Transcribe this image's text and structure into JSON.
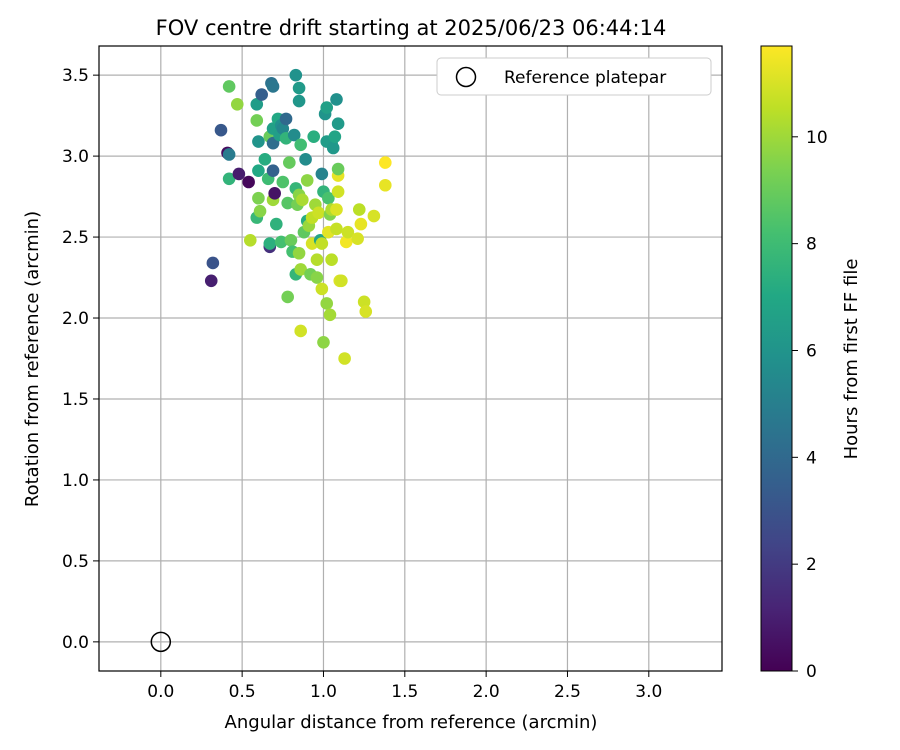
{
  "chart_data": {
    "type": "scatter",
    "title": "FOV centre drift starting at 2025/06/23 06:44:14",
    "xlabel": "Angular distance from reference (arcmin)",
    "ylabel": "Rotation from reference (arcmin)",
    "xlim": [
      -0.38,
      3.45
    ],
    "ylim": [
      -0.18,
      3.68
    ],
    "xticks": [
      "0.0",
      "0.5",
      "1.0",
      "1.5",
      "2.0",
      "2.5",
      "3.0"
    ],
    "yticks": [
      "0.0",
      "0.5",
      "1.0",
      "1.5",
      "2.0",
      "2.5",
      "3.0",
      "3.5"
    ],
    "grid": true,
    "legend": {
      "placement": "top-right",
      "entries": [
        "Reference platepar"
      ]
    },
    "colorbar": {
      "label": "Hours from first FF file",
      "range": [
        0,
        11.7
      ],
      "ticks": [
        "0",
        "2",
        "4",
        "6",
        "8",
        "10"
      ],
      "colormap": "viridis"
    },
    "reference_point": {
      "x": 0.0,
      "y": 0.0
    },
    "points": [
      {
        "x": 0.31,
        "y": 2.23,
        "h": 1.0
      },
      {
        "x": 0.32,
        "y": 2.34,
        "h": 3.0
      },
      {
        "x": 0.37,
        "y": 3.16,
        "h": 3.2
      },
      {
        "x": 0.41,
        "y": 3.02,
        "h": 0.4
      },
      {
        "x": 0.42,
        "y": 3.01,
        "h": 4.8
      },
      {
        "x": 0.42,
        "y": 3.43,
        "h": 8.8
      },
      {
        "x": 0.42,
        "y": 2.86,
        "h": 7.6
      },
      {
        "x": 0.47,
        "y": 3.32,
        "h": 9.8
      },
      {
        "x": 0.48,
        "y": 2.89,
        "h": 0.9
      },
      {
        "x": 0.54,
        "y": 2.84,
        "h": 0.2
      },
      {
        "x": 0.55,
        "y": 2.48,
        "h": 10.4
      },
      {
        "x": 0.59,
        "y": 3.32,
        "h": 6.4
      },
      {
        "x": 0.59,
        "y": 3.22,
        "h": 9.2
      },
      {
        "x": 0.6,
        "y": 3.09,
        "h": 6.0
      },
      {
        "x": 0.6,
        "y": 2.91,
        "h": 7.0
      },
      {
        "x": 0.6,
        "y": 2.74,
        "h": 9.4
      },
      {
        "x": 0.59,
        "y": 2.62,
        "h": 7.8
      },
      {
        "x": 0.62,
        "y": 3.38,
        "h": 3.5
      },
      {
        "x": 0.61,
        "y": 2.66,
        "h": 9.6
      },
      {
        "x": 0.64,
        "y": 2.98,
        "h": 7.2
      },
      {
        "x": 0.66,
        "y": 2.86,
        "h": 8.0
      },
      {
        "x": 0.67,
        "y": 3.12,
        "h": 9.0
      },
      {
        "x": 0.67,
        "y": 2.44,
        "h": 1.6
      },
      {
        "x": 0.67,
        "y": 2.46,
        "h": 7.4
      },
      {
        "x": 0.68,
        "y": 3.45,
        "h": 4.4
      },
      {
        "x": 0.69,
        "y": 3.43,
        "h": 4.6
      },
      {
        "x": 0.69,
        "y": 3.17,
        "h": 6.6
      },
      {
        "x": 0.69,
        "y": 3.08,
        "h": 4.2
      },
      {
        "x": 0.69,
        "y": 2.91,
        "h": 3.6
      },
      {
        "x": 0.69,
        "y": 2.73,
        "h": 10.0
      },
      {
        "x": 0.7,
        "y": 2.77,
        "h": 0.6
      },
      {
        "x": 0.71,
        "y": 2.58,
        "h": 7.5
      },
      {
        "x": 0.72,
        "y": 3.23,
        "h": 7.0
      },
      {
        "x": 0.73,
        "y": 3.13,
        "h": 6.5
      },
      {
        "x": 0.74,
        "y": 3.19,
        "h": 5.8
      },
      {
        "x": 0.74,
        "y": 2.47,
        "h": 8.2
      },
      {
        "x": 0.75,
        "y": 3.17,
        "h": 5.4
      },
      {
        "x": 0.75,
        "y": 2.84,
        "h": 8.4
      },
      {
        "x": 0.77,
        "y": 3.11,
        "h": 7.6
      },
      {
        "x": 0.77,
        "y": 3.23,
        "h": 4.0
      },
      {
        "x": 0.78,
        "y": 2.13,
        "h": 9.2
      },
      {
        "x": 0.78,
        "y": 2.71,
        "h": 8.6
      },
      {
        "x": 0.79,
        "y": 2.96,
        "h": 8.9
      },
      {
        "x": 0.8,
        "y": 2.48,
        "h": 9.0
      },
      {
        "x": 0.81,
        "y": 2.41,
        "h": 8.2
      },
      {
        "x": 0.82,
        "y": 3.13,
        "h": 5.6
      },
      {
        "x": 0.83,
        "y": 3.5,
        "h": 5.9
      },
      {
        "x": 0.83,
        "y": 2.8,
        "h": 7.7
      },
      {
        "x": 0.83,
        "y": 2.27,
        "h": 7.7
      },
      {
        "x": 0.84,
        "y": 2.7,
        "h": 9.2
      },
      {
        "x": 0.85,
        "y": 3.42,
        "h": 6.3
      },
      {
        "x": 0.85,
        "y": 3.34,
        "h": 6.1
      },
      {
        "x": 0.85,
        "y": 2.76,
        "h": 9.6
      },
      {
        "x": 0.85,
        "y": 2.4,
        "h": 9.8
      },
      {
        "x": 0.86,
        "y": 3.07,
        "h": 8.1
      },
      {
        "x": 0.86,
        "y": 2.3,
        "h": 10.0
      },
      {
        "x": 0.86,
        "y": 1.92,
        "h": 10.9
      },
      {
        "x": 0.87,
        "y": 2.73,
        "h": 10.2
      },
      {
        "x": 0.88,
        "y": 2.53,
        "h": 8.8
      },
      {
        "x": 0.89,
        "y": 2.98,
        "h": 5.6
      },
      {
        "x": 0.9,
        "y": 2.6,
        "h": 7.2
      },
      {
        "x": 0.9,
        "y": 2.85,
        "h": 9.7
      },
      {
        "x": 0.91,
        "y": 2.57,
        "h": 9.9
      },
      {
        "x": 0.92,
        "y": 2.27,
        "h": 9.2
      },
      {
        "x": 0.93,
        "y": 2.46,
        "h": 11.0
      },
      {
        "x": 0.93,
        "y": 2.62,
        "h": 10.6
      },
      {
        "x": 0.94,
        "y": 3.12,
        "h": 7.3
      },
      {
        "x": 0.95,
        "y": 2.7,
        "h": 10.0
      },
      {
        "x": 0.96,
        "y": 2.36,
        "h": 10.4
      },
      {
        "x": 0.96,
        "y": 2.25,
        "h": 9.6
      },
      {
        "x": 0.97,
        "y": 2.65,
        "h": 10.8
      },
      {
        "x": 0.98,
        "y": 2.48,
        "h": 6.8
      },
      {
        "x": 0.99,
        "y": 2.89,
        "h": 5.2
      },
      {
        "x": 0.99,
        "y": 2.46,
        "h": 10.6
      },
      {
        "x": 0.99,
        "y": 2.18,
        "h": 10.8
      },
      {
        "x": 1.0,
        "y": 1.85,
        "h": 9.7
      },
      {
        "x": 1.0,
        "y": 2.78,
        "h": 7.6
      },
      {
        "x": 1.01,
        "y": 3.26,
        "h": 6.0
      },
      {
        "x": 1.02,
        "y": 3.3,
        "h": 6.6
      },
      {
        "x": 1.02,
        "y": 3.09,
        "h": 6.4
      },
      {
        "x": 1.02,
        "y": 2.09,
        "h": 9.8
      },
      {
        "x": 1.03,
        "y": 2.74,
        "h": 8.3
      },
      {
        "x": 1.03,
        "y": 2.53,
        "h": 11.2
      },
      {
        "x": 1.04,
        "y": 2.64,
        "h": 9.5
      },
      {
        "x": 1.04,
        "y": 2.02,
        "h": 10.1
      },
      {
        "x": 1.05,
        "y": 3.08,
        "h": 6.4
      },
      {
        "x": 1.05,
        "y": 2.67,
        "h": 10.3
      },
      {
        "x": 1.05,
        "y": 2.36,
        "h": 10.5
      },
      {
        "x": 1.06,
        "y": 3.05,
        "h": 6.2
      },
      {
        "x": 1.07,
        "y": 3.12,
        "h": 6.8
      },
      {
        "x": 1.08,
        "y": 2.55,
        "h": 10.7
      },
      {
        "x": 1.08,
        "y": 3.35,
        "h": 5.8
      },
      {
        "x": 1.08,
        "y": 2.67,
        "h": 11.1
      },
      {
        "x": 1.09,
        "y": 2.88,
        "h": 11.3
      },
      {
        "x": 1.09,
        "y": 3.2,
        "h": 6.3
      },
      {
        "x": 1.09,
        "y": 2.78,
        "h": 10.9
      },
      {
        "x": 1.09,
        "y": 2.92,
        "h": 9.0
      },
      {
        "x": 1.1,
        "y": 2.23,
        "h": 11.1
      },
      {
        "x": 1.11,
        "y": 2.23,
        "h": 10.9
      },
      {
        "x": 1.13,
        "y": 1.75,
        "h": 10.9
      },
      {
        "x": 1.14,
        "y": 2.47,
        "h": 11.5
      },
      {
        "x": 1.15,
        "y": 2.53,
        "h": 10.8
      },
      {
        "x": 1.21,
        "y": 2.49,
        "h": 11.0
      },
      {
        "x": 1.22,
        "y": 2.67,
        "h": 10.5
      },
      {
        "x": 1.23,
        "y": 2.58,
        "h": 11.3
      },
      {
        "x": 1.25,
        "y": 2.1,
        "h": 10.8
      },
      {
        "x": 1.26,
        "y": 2.04,
        "h": 11.0
      },
      {
        "x": 1.31,
        "y": 2.63,
        "h": 11.0
      },
      {
        "x": 1.38,
        "y": 2.96,
        "h": 11.7
      },
      {
        "x": 1.38,
        "y": 2.82,
        "h": 11.3
      }
    ]
  }
}
